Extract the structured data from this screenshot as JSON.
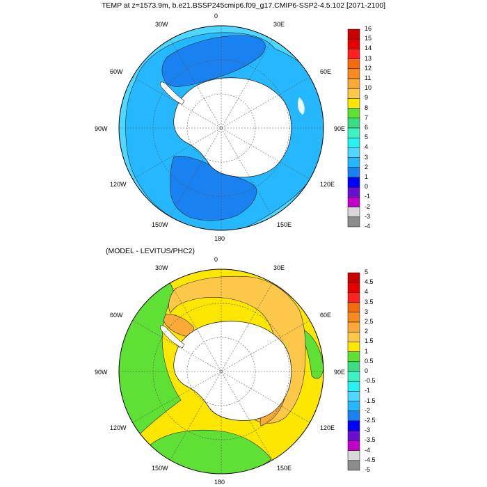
{
  "top_map": {
    "title": "TEMP at z=1573.9m, b.e21.BSSP245cmip6.f09_g17.CMIP6-SSP2-4.5.102 [2071-2100]",
    "longitude_labels": [
      "0",
      "30E",
      "60E",
      "90E",
      "120E",
      "150E",
      "180",
      "150W",
      "120W",
      "90W",
      "60W",
      "30W"
    ],
    "colorbar": {
      "labels": [
        "16",
        "15",
        "14",
        "13",
        "12",
        "11",
        "10",
        "9",
        "8",
        "7",
        "6",
        "5",
        "4",
        "3",
        "2",
        "1",
        "0",
        "-1",
        "-2",
        "-3",
        "-4"
      ],
      "colors": [
        "#c80000",
        "#e60000",
        "#ff2020",
        "#f56a0a",
        "#f88b20",
        "#fbaa3a",
        "#fdc84a",
        "#fde700",
        "#5ee034",
        "#3ddc84",
        "#3ff2c4",
        "#28f0f0",
        "#4fd8ff",
        "#25b8ff",
        "#1a82f0",
        "#0000ff",
        "#6a0fd0",
        "#c000c8",
        "#d8d8d8",
        "#8c8c8c"
      ]
    },
    "fill_colors": {
      "outer": "#4fd8ff",
      "ring": "#25b8ff",
      "deep": "#1a82f0",
      "land": "#ffffff"
    }
  },
  "bottom_map": {
    "title": "(MODEL - LEVITUS/PHC2)",
    "longitude_labels": [
      "0",
      "30E",
      "60E",
      "90E",
      "120E",
      "150E",
      "180",
      "150W",
      "120W",
      "90W",
      "60W",
      "30W"
    ],
    "colorbar": {
      "labels": [
        "5",
        "4.5",
        "4",
        "3.5",
        "3",
        "2.5",
        "2",
        "1.5",
        "1",
        "0.5",
        "0",
        "-0.5",
        "-1",
        "-1.5",
        "-2",
        "-2.5",
        "-3",
        "-3.5",
        "-4",
        "-4.5",
        "-5"
      ],
      "colors": [
        "#c80000",
        "#e60000",
        "#ff2020",
        "#f56a0a",
        "#f88b20",
        "#fbaa3a",
        "#fdc84a",
        "#fde700",
        "#5ee034",
        "#3ddc84",
        "#3ff2c4",
        "#28f0f0",
        "#4fd8ff",
        "#25b8ff",
        "#1a82f0",
        "#0000ff",
        "#6a0fd0",
        "#c000c8",
        "#d8d8d8",
        "#8c8c8c"
      ]
    },
    "fill_colors": {
      "green": "#5ee034",
      "yellow": "#fde700",
      "orange_light": "#fdc84a",
      "orange": "#fbaa3a",
      "land": "#ffffff"
    }
  }
}
